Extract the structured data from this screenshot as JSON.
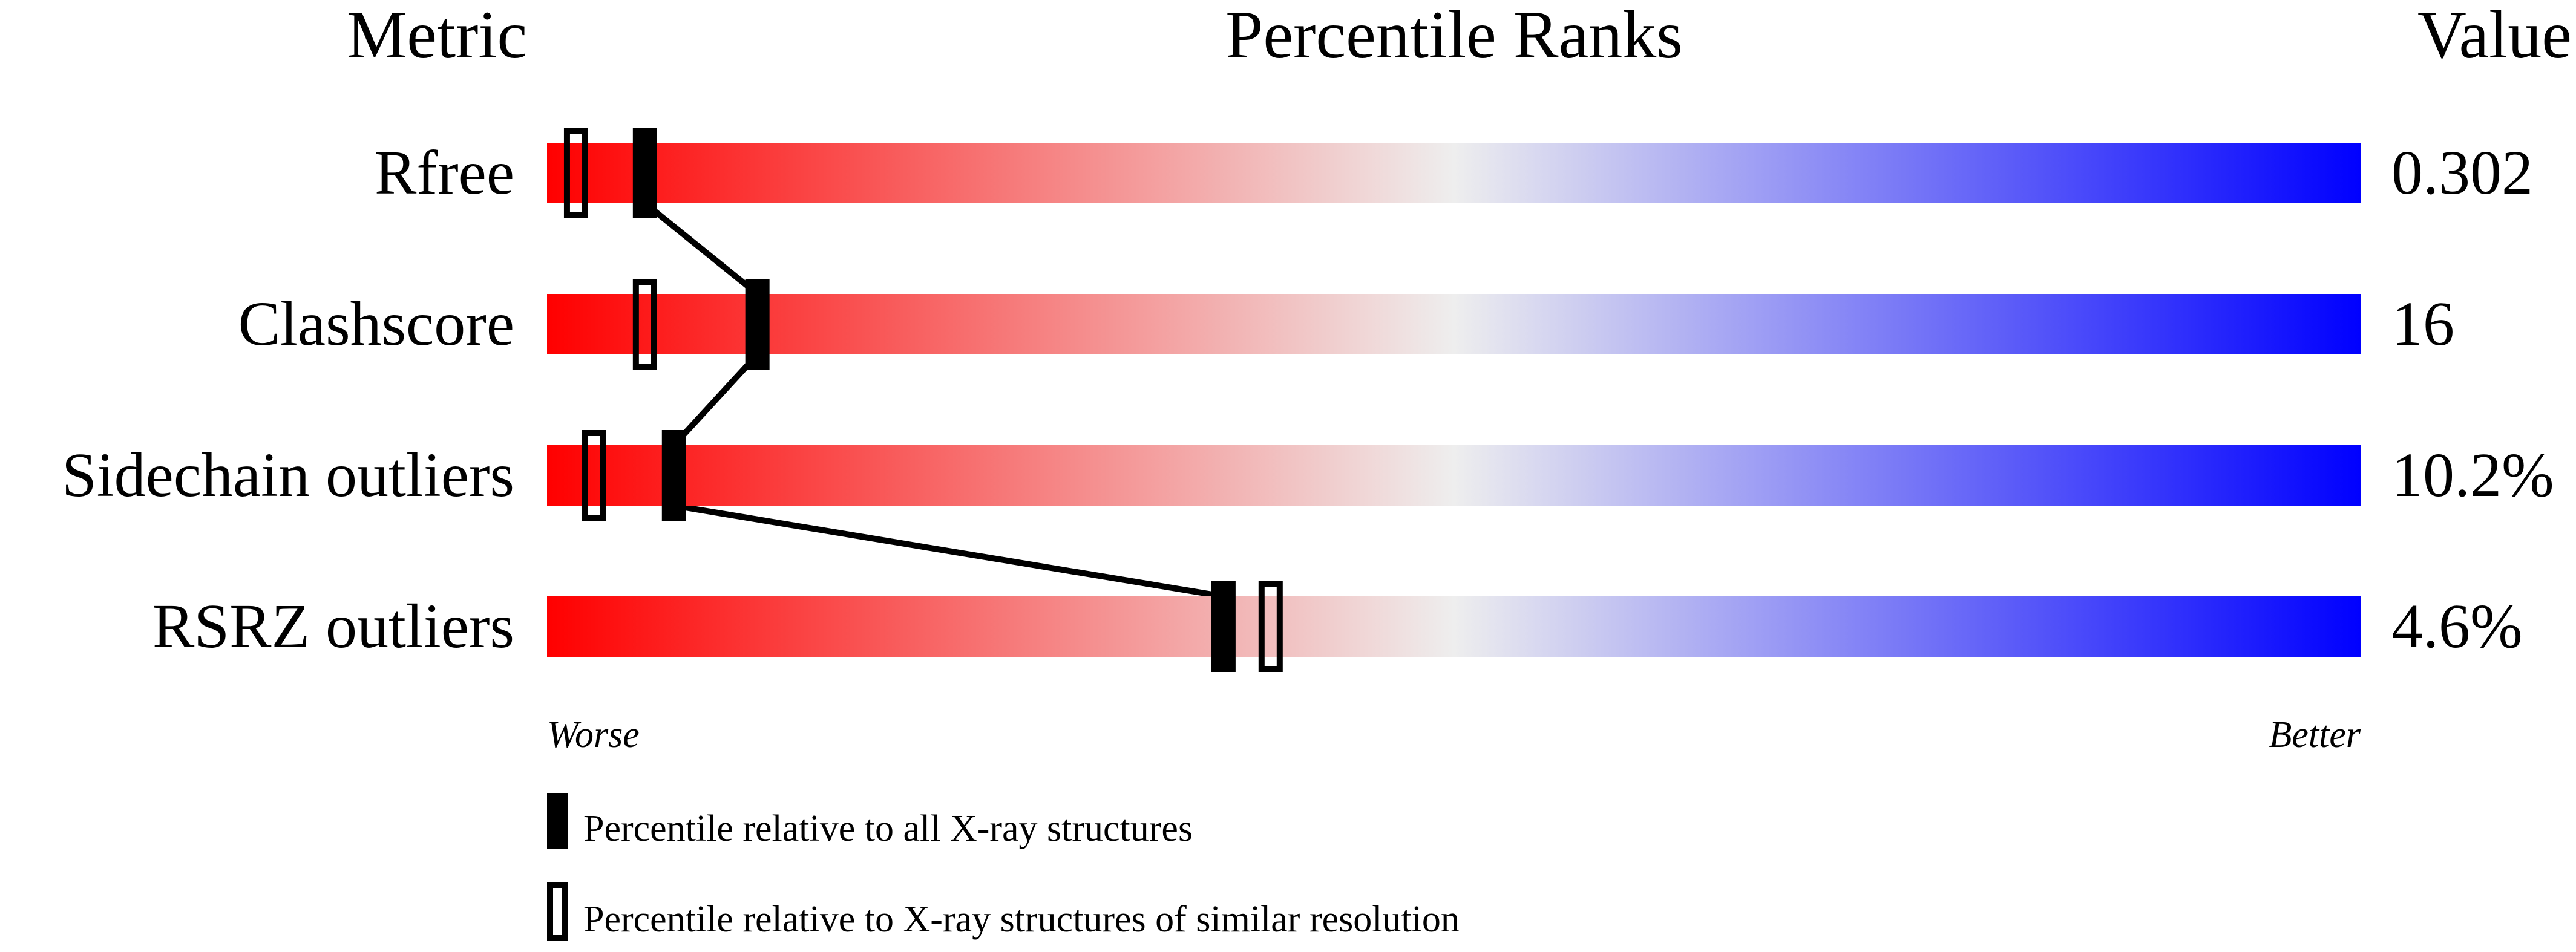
{
  "chart_data": {
    "type": "bar",
    "title": "Percentile Ranks",
    "column_headers": {
      "metric": "Metric",
      "ranks": "Percentile Ranks",
      "value": "Value"
    },
    "xlim": [
      0,
      100
    ],
    "axis_labels": {
      "left": "Worse",
      "right": "Better"
    },
    "gradient_colors": {
      "worse": "#ff0000",
      "middle": "#eeeeee",
      "better": "#0000ff"
    },
    "rows": [
      {
        "metric": "Rfree",
        "value": "0.302",
        "percentile_all": 5.4,
        "percentile_similar": 1.6
      },
      {
        "metric": "Clashscore",
        "value": "16",
        "percentile_all": 11.6,
        "percentile_similar": 5.4
      },
      {
        "metric": "Sidechain outliers",
        "value": "10.2%",
        "percentile_all": 7.0,
        "percentile_similar": 2.6
      },
      {
        "metric": "RSRZ outliers",
        "value": "4.6%",
        "percentile_all": 37.3,
        "percentile_similar": 39.9
      }
    ],
    "legend": [
      {
        "marker": "filled",
        "label": "Percentile relative to all X-ray structures"
      },
      {
        "marker": "hollow",
        "label": "Percentile relative to X-ray structures of similar resolution"
      }
    ]
  }
}
